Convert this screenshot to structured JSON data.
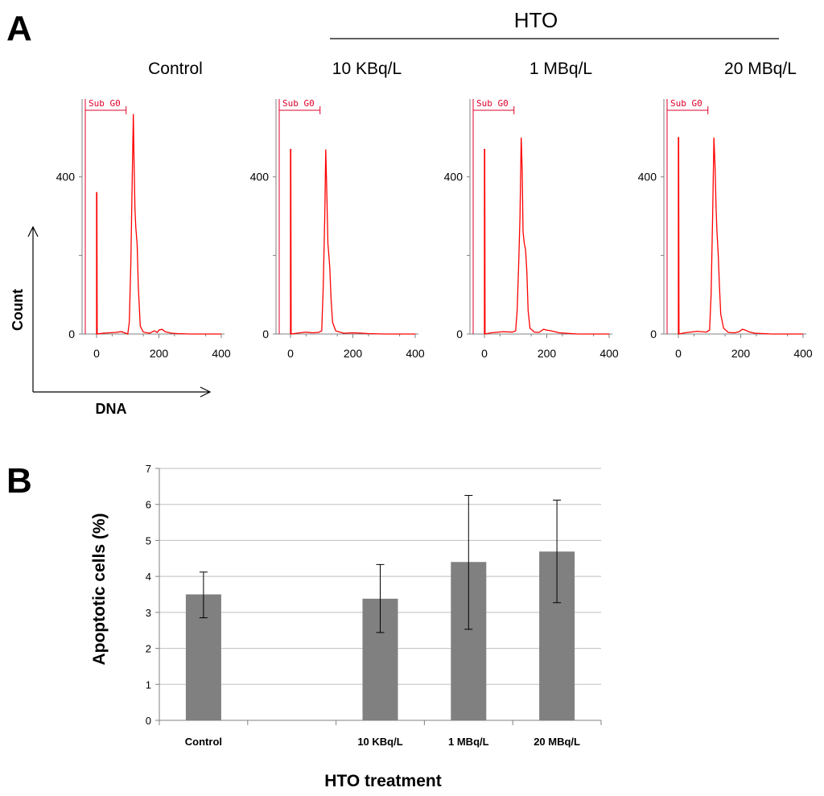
{
  "panel_a": {
    "letter": "A",
    "group_label": "HTO",
    "axis_y_label": "Count",
    "axis_x_label": "DNA",
    "gate_label": "Sub G0",
    "histograms": [
      {
        "condition": "Control",
        "x_ticks": [
          "0",
          "200",
          "400"
        ],
        "y_ticks": [
          "0",
          "400"
        ],
        "x_range": [
          0,
          400
        ],
        "y_range": [
          0,
          590
        ],
        "gate": [
          0,
          100
        ],
        "profile": [
          [
            0,
            0
          ],
          [
            0,
            360
          ],
          [
            1,
            360
          ],
          [
            2,
            0
          ],
          [
            20,
            2
          ],
          [
            60,
            4
          ],
          [
            80,
            6
          ],
          [
            90,
            3
          ],
          [
            100,
            0
          ],
          [
            105,
            30
          ],
          [
            110,
            180
          ],
          [
            115,
            430
          ],
          [
            118,
            560
          ],
          [
            120,
            450
          ],
          [
            123,
            320
          ],
          [
            126,
            270
          ],
          [
            130,
            230
          ],
          [
            134,
            120
          ],
          [
            140,
            20
          ],
          [
            150,
            5
          ],
          [
            170,
            2
          ],
          [
            185,
            8
          ],
          [
            195,
            4
          ],
          [
            200,
            10
          ],
          [
            210,
            12
          ],
          [
            220,
            6
          ],
          [
            240,
            2
          ],
          [
            260,
            1
          ],
          [
            300,
            0
          ],
          [
            400,
            0
          ]
        ]
      },
      {
        "condition": "10 KBq/L",
        "x_ticks": [
          "0",
          "200",
          "400"
        ],
        "y_ticks": [
          "0",
          "400"
        ],
        "x_range": [
          0,
          400
        ],
        "y_range": [
          0,
          590
        ],
        "gate": [
          0,
          100
        ],
        "profile": [
          [
            0,
            0
          ],
          [
            0,
            470
          ],
          [
            1,
            470
          ],
          [
            2,
            0
          ],
          [
            20,
            2
          ],
          [
            50,
            5
          ],
          [
            70,
            3
          ],
          [
            90,
            4
          ],
          [
            100,
            8
          ],
          [
            105,
            120
          ],
          [
            110,
            300
          ],
          [
            113,
            470
          ],
          [
            116,
            380
          ],
          [
            120,
            230
          ],
          [
            123,
            200
          ],
          [
            126,
            170
          ],
          [
            130,
            90
          ],
          [
            135,
            30
          ],
          [
            145,
            8
          ],
          [
            170,
            2
          ],
          [
            200,
            3
          ],
          [
            230,
            2
          ],
          [
            250,
            1
          ],
          [
            300,
            0
          ],
          [
            400,
            0
          ]
        ]
      },
      {
        "condition": "1 MBq/L",
        "x_ticks": [
          "0",
          "200",
          "400"
        ],
        "y_ticks": [
          "0",
          "400"
        ],
        "x_range": [
          0,
          400
        ],
        "y_range": [
          0,
          590
        ],
        "gate": [
          0,
          100
        ],
        "profile": [
          [
            0,
            0
          ],
          [
            0,
            470
          ],
          [
            1,
            470
          ],
          [
            2,
            0
          ],
          [
            20,
            3
          ],
          [
            60,
            6
          ],
          [
            90,
            5
          ],
          [
            100,
            8
          ],
          [
            105,
            60
          ],
          [
            110,
            180
          ],
          [
            114,
            300
          ],
          [
            118,
            500
          ],
          [
            121,
            420
          ],
          [
            124,
            260
          ],
          [
            128,
            230
          ],
          [
            132,
            215
          ],
          [
            136,
            160
          ],
          [
            140,
            60
          ],
          [
            146,
            15
          ],
          [
            160,
            5
          ],
          [
            175,
            4
          ],
          [
            190,
            12
          ],
          [
            200,
            10
          ],
          [
            215,
            8
          ],
          [
            240,
            3
          ],
          [
            300,
            0
          ],
          [
            400,
            0
          ]
        ]
      },
      {
        "condition": "20 MBq/L",
        "x_ticks": [
          "0",
          "200",
          "400"
        ],
        "y_ticks": [
          "0",
          "400"
        ],
        "x_range": [
          0,
          400
        ],
        "y_range": [
          0,
          590
        ],
        "gate": [
          0,
          100
        ],
        "profile": [
          [
            0,
            0
          ],
          [
            0,
            500
          ],
          [
            1,
            500
          ],
          [
            2,
            0
          ],
          [
            20,
            3
          ],
          [
            60,
            7
          ],
          [
            90,
            5
          ],
          [
            100,
            10
          ],
          [
            105,
            100
          ],
          [
            110,
            300
          ],
          [
            114,
            500
          ],
          [
            118,
            420
          ],
          [
            121,
            320
          ],
          [
            124,
            260
          ],
          [
            128,
            200
          ],
          [
            132,
            120
          ],
          [
            136,
            50
          ],
          [
            145,
            15
          ],
          [
            160,
            4
          ],
          [
            180,
            3
          ],
          [
            195,
            6
          ],
          [
            205,
            12
          ],
          [
            215,
            10
          ],
          [
            225,
            6
          ],
          [
            245,
            2
          ],
          [
            300,
            0
          ],
          [
            400,
            0
          ]
        ]
      }
    ]
  },
  "panel_b": {
    "letter": "B"
  },
  "chart_data": {
    "type": "bar",
    "title": "",
    "categories": [
      "Control",
      "",
      "10 KBq/L",
      "1 MBq/L",
      "20 MBq/L"
    ],
    "values": [
      3.5,
      null,
      3.38,
      4.4,
      4.69
    ],
    "error_low": [
      2.85,
      null,
      2.44,
      2.53,
      3.27
    ],
    "error_high": [
      4.12,
      null,
      4.33,
      6.25,
      6.12
    ],
    "ylim": [
      0,
      7
    ],
    "y_ticks": [
      "0",
      "1",
      "2",
      "3",
      "4",
      "5",
      "6",
      "7"
    ],
    "grid": true,
    "ylabel": "Apoptotic cells (%)",
    "xlabel": "HTO treatment",
    "bar_color": "#808080",
    "grid_color": "#bfbfbf"
  },
  "colors": {
    "histogram": "#ff0000",
    "gate": "#e0002a",
    "axis": "#808080"
  }
}
